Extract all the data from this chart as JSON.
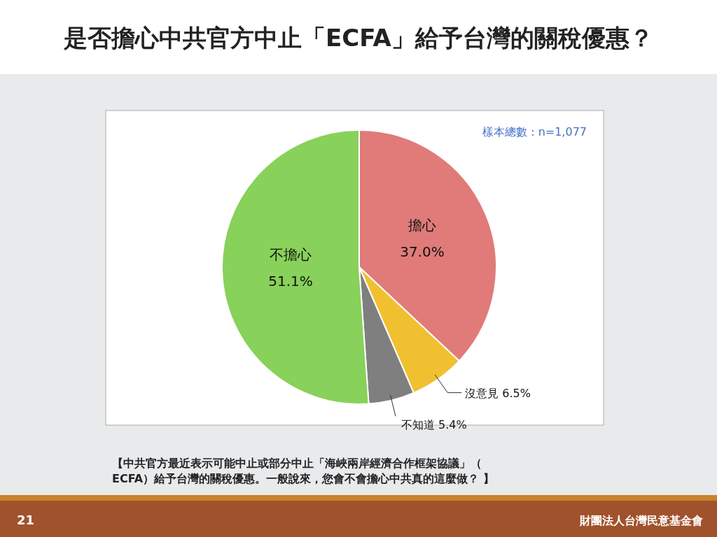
{
  "chart_data": {
    "type": "pie",
    "title": "是否擔心中共官方中止「ECFA」給予台灣的關稅優惠？",
    "categories": [
      "擔心",
      "沒意見",
      "不知道",
      "不擔心"
    ],
    "values": [
      37.0,
      6.5,
      5.4,
      51.1
    ],
    "value_labels": [
      "37.0%",
      "6.5%",
      "5.4%",
      "51.1%"
    ],
    "colors": [
      "#e07b79",
      "#f0c030",
      "#7f7f7f",
      "#88d15a"
    ],
    "legend": false,
    "annotations": [
      "樣本總數：n=1,077",
      "【中共官方最近表示可能中止或部分中止「海峽兩岸經濟合作框架協議」（ECFA）給予台灣的關稅優惠。一般說來，您會不會擔心中共真的這麼做？ 】",
      "21",
      "財團法人台灣民意基金會"
    ]
  }
}
